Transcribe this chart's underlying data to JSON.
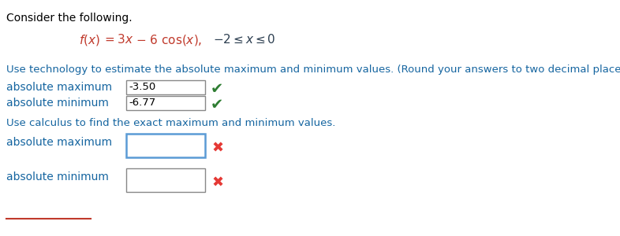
{
  "title_text": "Consider the following.",
  "title_color": "#000000",
  "func_color": "#c0392b",
  "domain_color": "#2c3e50",
  "tech_line": "Use technology to estimate the absolute maximum and minimum values. (Round your answers to two decimal places.",
  "tech_line_color": "#1565a0",
  "label_color": "#1565a0",
  "abs_max_label": "absolute maximum",
  "abs_min_label": "absolute minimum",
  "abs_max_value": "-3.50",
  "abs_min_value": "-6.77",
  "filled_box_border": "#888888",
  "check_color": "#2e7d32",
  "calculus_line": "Use calculus to find the exact maximum and minimum values.",
  "calculus_line_color": "#1565a0",
  "empty_box_border_max": "#5b9bd5",
  "empty_box_border_min": "#888888",
  "cross_color": "#e53935",
  "bg_color": "#ffffff",
  "underline_color": "#c0392b"
}
